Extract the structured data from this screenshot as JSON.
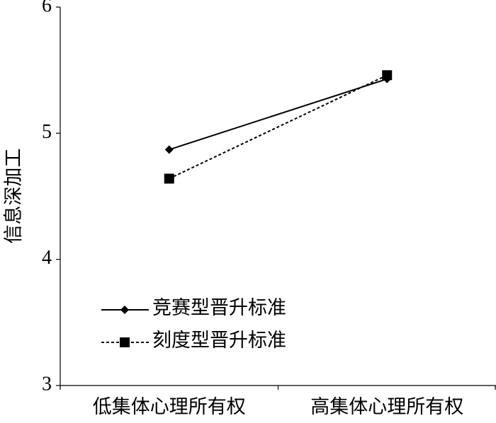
{
  "chart_data": {
    "type": "line",
    "y_label": "信息深加工",
    "categories": [
      "低集体心理所有权",
      "高集体心理所有权"
    ],
    "series": [
      {
        "name": "竞赛型晋升标准",
        "color": "#000000",
        "marker": "diamond",
        "dash": "solid",
        "values": [
          4.87,
          5.43
        ]
      },
      {
        "name": "刻度型晋升标准",
        "color": "#000000",
        "marker": "square",
        "dash": "dashed",
        "values": [
          4.64,
          5.46
        ]
      }
    ],
    "ylim": [
      3,
      6
    ],
    "yticks": [
      3,
      4,
      5,
      6
    ],
    "grid": false
  }
}
